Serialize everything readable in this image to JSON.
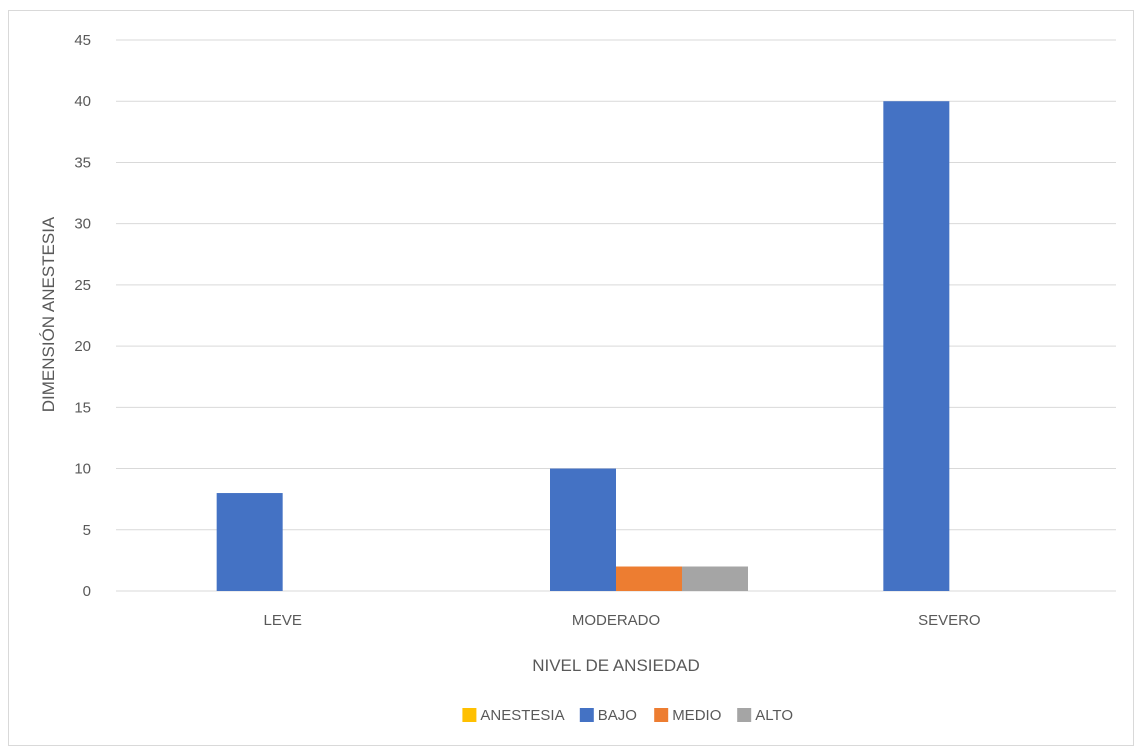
{
  "chart_data": {
    "type": "bar",
    "title": "",
    "xlabel": "NIVEL DE ANSIEDAD",
    "ylabel": "DIMENSIÓN ANESTESIA",
    "categories": [
      "LEVE",
      "MODERADO",
      "SEVERO"
    ],
    "series": [
      {
        "name": "ANESTESIA",
        "color": "#ffc000",
        "values": [
          0,
          0,
          0
        ]
      },
      {
        "name": "BAJO",
        "color": "#4472c4",
        "values": [
          8,
          10,
          40
        ]
      },
      {
        "name": "MEDIO",
        "color": "#ed7d31",
        "values": [
          0,
          2,
          0
        ]
      },
      {
        "name": "ALTO",
        "color": "#a5a5a5",
        "values": [
          0,
          2,
          0
        ]
      }
    ],
    "ylim": [
      0,
      45
    ],
    "yticks": [
      "0",
      "5",
      "10",
      "15",
      "20",
      "25",
      "30",
      "35",
      "40",
      "45"
    ],
    "grid": true,
    "legend_position": "bottom",
    "gridline_color": "#d9d9d9"
  }
}
